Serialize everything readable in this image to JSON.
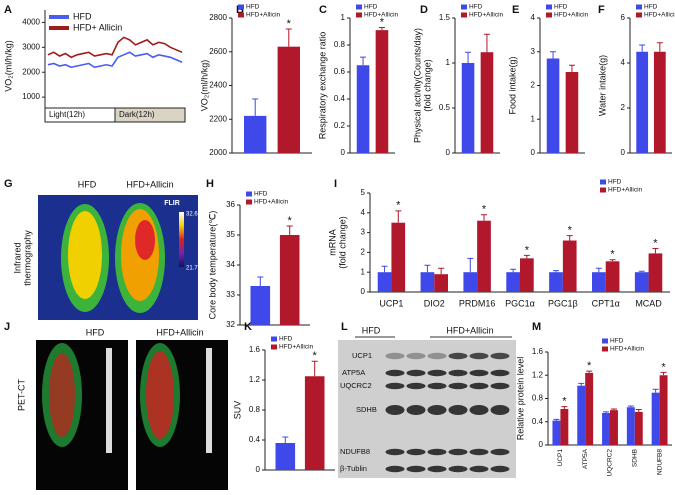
{
  "chart_data": [
    {
      "type": "line",
      "panel": "A",
      "ylabel": "VO₂(ml/h/kg)",
      "categories": [
        null,
        null,
        null,
        null,
        null,
        null,
        null,
        null,
        null,
        null,
        null,
        null,
        null,
        null,
        null,
        null,
        null,
        null,
        null,
        null,
        null,
        null,
        null,
        null
      ],
      "series": [
        {
          "name": "HFD",
          "color": "#4b5cf0",
          "values": [
            2300,
            2350,
            2250,
            2300,
            2200,
            2250,
            2300,
            2350,
            2200,
            2250,
            2300,
            2250,
            2600,
            2700,
            2800,
            2650,
            2700,
            2750,
            2600,
            2700,
            2650,
            2600,
            2500,
            2400
          ]
        },
        {
          "name": "HFD+ Allicin",
          "color": "#a01c1c",
          "values": [
            2700,
            2800,
            2650,
            2750,
            2600,
            2700,
            2750,
            2800,
            2650,
            2700,
            2750,
            2700,
            3200,
            3400,
            3300,
            3100,
            3200,
            3300,
            3100,
            3200,
            3150,
            3000,
            2900,
            2800
          ]
        }
      ],
      "ylim": [
        0,
        4500
      ],
      "yticks": [
        1000,
        2000,
        3000,
        4000
      ],
      "phases": [
        "Light(12h)",
        "Dark(12h)"
      ],
      "legend": "top-left"
    },
    {
      "type": "bar",
      "panel": "B",
      "ylabel": "VO₂(ml/h/kg)",
      "categories": [
        null
      ],
      "series": [
        {
          "name": "HFD",
          "color": "#3f48e8",
          "values": [
            2220
          ],
          "errors": [
            100
          ]
        },
        {
          "name": "HFD+Allicin",
          "color": "#b2182b",
          "values": [
            2630
          ],
          "errors": [
            105
          ]
        }
      ],
      "significance": [
        "*"
      ],
      "ylim": [
        2000,
        2800
      ],
      "yticks": [
        2000,
        2200,
        2400,
        2600,
        2800
      ],
      "legend": "top-left"
    },
    {
      "type": "bar",
      "panel": "C",
      "ylabel": "Respiratory exchange ratio",
      "categories": [
        null
      ],
      "series": [
        {
          "name": "HFD",
          "color": "#3f48e8",
          "values": [
            0.65
          ],
          "errors": [
            0.06
          ]
        },
        {
          "name": "HFD+Allicin",
          "color": "#b2182b",
          "values": [
            0.91
          ],
          "errors": [
            0.02
          ]
        }
      ],
      "significance": [
        "*"
      ],
      "ylim": [
        0,
        1
      ],
      "yticks": [
        0,
        0.2,
        0.4,
        0.6,
        0.8,
        1
      ],
      "legend": "top-left"
    },
    {
      "type": "bar",
      "panel": "D",
      "ylabel": [
        "Physical activity(Counts/day)",
        "(fold change)"
      ],
      "categories": [
        null
      ],
      "series": [
        {
          "name": "HFD",
          "color": "#3f48e8",
          "values": [
            1.0
          ],
          "errors": [
            0.12
          ]
        },
        {
          "name": "HFD+Allicin",
          "color": "#b2182b",
          "values": [
            1.12
          ],
          "errors": [
            0.2
          ]
        }
      ],
      "significance": [
        null
      ],
      "ylim": [
        0,
        1.5
      ],
      "yticks": [
        0,
        0.5,
        1,
        1.5
      ],
      "legend": "top-left"
    },
    {
      "type": "bar",
      "panel": "E",
      "ylabel": "Food intake(g)",
      "categories": [
        null
      ],
      "series": [
        {
          "name": "HFD",
          "color": "#3f48e8",
          "values": [
            2.8
          ],
          "errors": [
            0.2
          ]
        },
        {
          "name": "HFD+Allicin",
          "color": "#b2182b",
          "values": [
            2.4
          ],
          "errors": [
            0.2
          ]
        }
      ],
      "significance": [
        null
      ],
      "ylim": [
        0,
        4
      ],
      "yticks": [
        0,
        1,
        2,
        3,
        4
      ],
      "legend": "top-left"
    },
    {
      "type": "bar",
      "panel": "F",
      "ylabel": "Water  intake(g)",
      "categories": [
        null
      ],
      "series": [
        {
          "name": "HFD",
          "color": "#3f48e8",
          "values": [
            4.5
          ],
          "errors": [
            0.3
          ]
        },
        {
          "name": "HFD+Allicin",
          "color": "#b2182b",
          "values": [
            4.5
          ],
          "errors": [
            0.4
          ]
        }
      ],
      "significance": [
        null
      ],
      "ylim": [
        0,
        6
      ],
      "yticks": [
        0,
        2,
        4,
        6
      ],
      "legend": "top-left"
    },
    {
      "type": "bar",
      "panel": "H",
      "ylabel": "Core body temperature(℃)",
      "categories": [
        null
      ],
      "series": [
        {
          "name": "HFD",
          "color": "#3f48e8",
          "values": [
            33.3
          ],
          "errors": [
            0.3
          ]
        },
        {
          "name": "HFD+Allicin",
          "color": "#b2182b",
          "values": [
            35.0
          ],
          "errors": [
            0.3
          ]
        }
      ],
      "significance": [
        "*"
      ],
      "ylim": [
        32,
        36
      ],
      "yticks": [
        32,
        33,
        34,
        35,
        36
      ],
      "legend": "top-left"
    },
    {
      "type": "bar",
      "panel": "I",
      "ylabel": [
        "mRNA",
        "(fold change)"
      ],
      "categories": [
        "UCP1",
        "DIO2",
        "PRDM16",
        "PGC1α",
        "PGC1β",
        "CPT1α",
        "MCAD"
      ],
      "series": [
        {
          "name": "HFD",
          "color": "#3f48e8",
          "values": [
            1.0,
            1.0,
            1.0,
            1.0,
            1.0,
            1.0,
            1.0
          ],
          "errors": [
            0.3,
            0.35,
            0.7,
            0.15,
            0.08,
            0.2,
            0.05
          ]
        },
        {
          "name": "HFD+Allicin",
          "color": "#b2182b",
          "values": [
            3.5,
            0.9,
            3.6,
            1.7,
            2.6,
            1.55,
            1.95
          ],
          "errors": [
            0.6,
            0.3,
            0.3,
            0.15,
            0.25,
            0.08,
            0.25
          ]
        }
      ],
      "significance": [
        "*",
        null,
        "*",
        "*",
        "*",
        "*",
        "*"
      ],
      "ylim": [
        0,
        5
      ],
      "yticks": [
        0,
        1,
        2,
        3,
        4,
        5
      ],
      "legend": "top-right"
    },
    {
      "type": "bar",
      "panel": "K",
      "ylabel": "SUV",
      "categories": [
        null
      ],
      "series": [
        {
          "name": "HFD",
          "color": "#3f48e8",
          "values": [
            0.36
          ],
          "errors": [
            0.08
          ]
        },
        {
          "name": "HFD+Allicin",
          "color": "#b2182b",
          "values": [
            1.25
          ],
          "errors": [
            0.2
          ]
        }
      ],
      "significance": [
        "*"
      ],
      "ylim": [
        0,
        1.6
      ],
      "yticks": [
        0,
        0.4,
        0.8,
        1.2,
        1.6
      ],
      "legend": "top-left"
    },
    {
      "type": "bar",
      "panel": "M",
      "ylabel": "Relative protein level",
      "categories": [
        "UCP1",
        "ATP5A",
        "UQCRC2",
        "SDHB",
        "NDUFB8"
      ],
      "series": [
        {
          "name": "HFD",
          "color": "#3f48e8",
          "values": [
            0.42,
            1.02,
            0.55,
            0.65,
            0.9
          ],
          "errors": [
            0.02,
            0.04,
            0.02,
            0.02,
            0.06
          ]
        },
        {
          "name": "HFD+Allicin",
          "color": "#b2182b",
          "values": [
            0.62,
            1.24,
            0.6,
            0.57,
            1.2
          ],
          "errors": [
            0.04,
            0.03,
            0.02,
            0.04,
            0.05
          ]
        }
      ],
      "significance": [
        "*",
        "*",
        null,
        null,
        "*"
      ],
      "ylim": [
        0,
        1.6
      ],
      "yticks": [
        0,
        0.4,
        0.8,
        1.2,
        1.6
      ],
      "legend": "top-right"
    }
  ],
  "figures": {
    "G": {
      "panel": "G",
      "groups": [
        "HFD",
        "HFD+Allicin"
      ],
      "side_label": [
        "Infrared",
        "thermography"
      ],
      "brand": "FLIR",
      "scale_max": "32.6",
      "scale_min": "21.7"
    },
    "J": {
      "panel": "J",
      "groups": [
        "HFD",
        "HFD+Allicin"
      ],
      "side_label": "PET-CT"
    },
    "L": {
      "panel": "L",
      "groups": [
        "HFD",
        "HFD+Allicin"
      ],
      "proteins": [
        "UCP1",
        "ATP5A",
        "UQCRC2",
        "SDHB",
        "NDUFB8",
        "β-Tublin"
      ]
    }
  }
}
